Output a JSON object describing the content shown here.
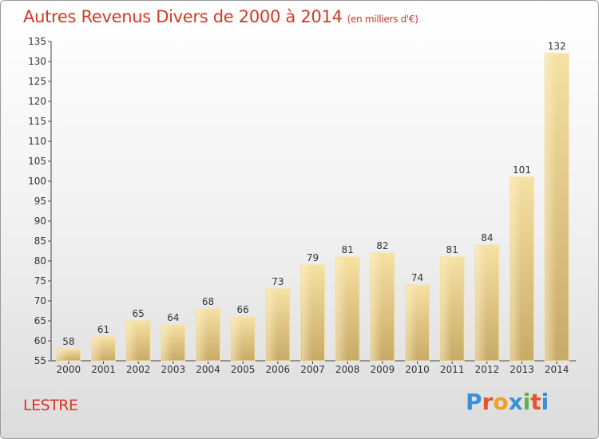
{
  "header": {
    "title": "Autres Revenus Divers de 2000 à 2014",
    "unit": "(en milliers d'€)"
  },
  "footer": {
    "location": "LESTRE",
    "brand_letters": [
      "P",
      "r",
      "o",
      "x",
      "i",
      "t",
      "i"
    ],
    "brand_colors": [
      "#3b8fd6",
      "#e8522d",
      "#f0a020",
      "#3b8fd6",
      "#62b046",
      "#e8522d",
      "#3b8fd6"
    ]
  },
  "chart_data": {
    "type": "bar",
    "title": "Autres Revenus Divers de 2000 à 2014",
    "categories": [
      "2000",
      "2001",
      "2002",
      "2003",
      "2004",
      "2005",
      "2006",
      "2007",
      "2008",
      "2009",
      "2010",
      "2011",
      "2012",
      "2013",
      "2014"
    ],
    "values": [
      58,
      61,
      65,
      64,
      68,
      66,
      73,
      79,
      81,
      82,
      74,
      81,
      84,
      101,
      132
    ],
    "ylim": [
      55,
      135
    ],
    "yticks": [
      55,
      60,
      65,
      70,
      75,
      80,
      85,
      90,
      95,
      100,
      105,
      110,
      115,
      120,
      125,
      130,
      135
    ],
    "grid": false,
    "bar_color": "#e0c27a"
  }
}
